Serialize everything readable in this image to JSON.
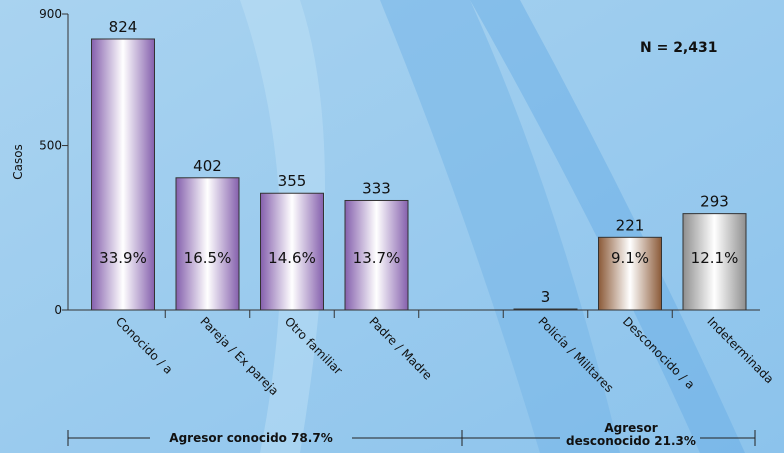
{
  "chart_data": {
    "type": "bar",
    "y_label": "Casos",
    "annotation": "N = 2,431",
    "categories": [
      "Conocido / a",
      "Pareja / Ex pareja",
      "Otro familiar",
      "Padre / Madre",
      null,
      "Policía / Militares",
      "Desconocido / a",
      "Indeterminada"
    ],
    "values": [
      824,
      402,
      355,
      333,
      null,
      3,
      221,
      293
    ],
    "percent_labels": [
      "33.9%",
      "16.5%",
      "14.6%",
      "13.7%",
      null,
      null,
      "9.1%",
      "12.1%"
    ],
    "colors": [
      "#8560ad",
      "#8560ad",
      "#8560ad",
      "#8560ad",
      null,
      "#8560ad",
      "#8b5a38",
      "#8f8f8f"
    ],
    "ylim": [
      0,
      900
    ],
    "yticks": [
      0,
      500,
      900
    ],
    "groups": [
      {
        "lines": [
          "Agresor conocido  78.7%"
        ]
      },
      {
        "lines": [
          "Agresor",
          "desconocido 21.3%"
        ]
      }
    ]
  }
}
